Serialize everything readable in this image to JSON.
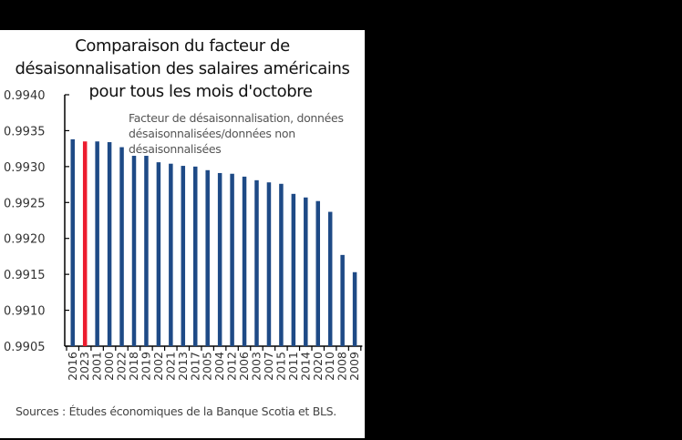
{
  "chart_data": {
    "type": "bar",
    "title": "Comparaison du facteur de désaisonnalisation des salaires américains pour tous les mois d'octobre",
    "title_lines": [
      "Comparaison du facteur de",
      "désaisonnalisation des salaires américains",
      "pour tous les mois d'octobre"
    ],
    "annotation": "Facteur de désaisonnalisation, données désaisonnalisées/données non désaisonnalisées",
    "annotation_lines": [
      "Facteur de désaisonnalisation, données",
      "désaisonnalisées/données non",
      "désaisonnalisées"
    ],
    "xlabel": "",
    "ylabel": "",
    "ylim": [
      0.9905,
      0.994
    ],
    "yticks": [
      "0.9905",
      "0.9910",
      "0.9915",
      "0.9920",
      "0.9925",
      "0.9930",
      "0.9935",
      "0.9940"
    ],
    "categories": [
      "2016",
      "2023",
      "2001",
      "2000",
      "2022",
      "2018",
      "2019",
      "2002",
      "2021",
      "2013",
      "2017",
      "2005",
      "2004",
      "2012",
      "2006",
      "2003",
      "2007",
      "2015",
      "2011",
      "2014",
      "2020",
      "2010",
      "2008",
      "2009"
    ],
    "values": [
      0.99338,
      0.99335,
      0.99335,
      0.99334,
      0.99327,
      0.99315,
      0.99315,
      0.99306,
      0.99304,
      0.99301,
      0.993,
      0.99295,
      0.99291,
      0.9929,
      0.99286,
      0.99281,
      0.99278,
      0.99276,
      0.99262,
      0.99257,
      0.99252,
      0.99237,
      0.99177,
      0.99153
    ],
    "highlight": "2023",
    "colors": {
      "default": "#1e4a86",
      "highlight": "#ec1c2e"
    },
    "grid": false,
    "legend": "none",
    "source": "Sources : Études économiques de la Banque Scotia et BLS."
  }
}
